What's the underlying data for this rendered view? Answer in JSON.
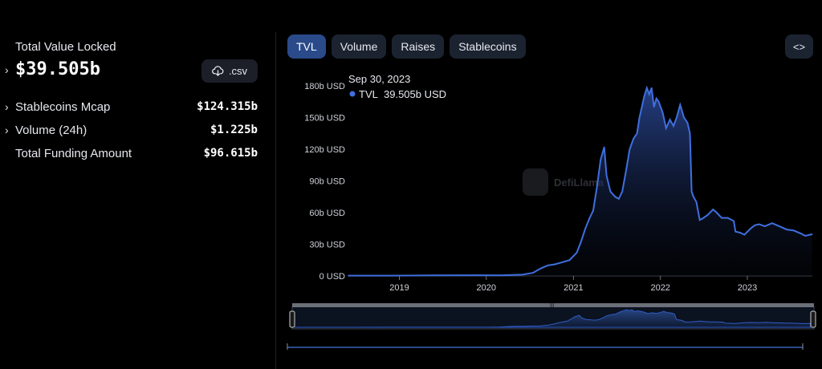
{
  "left": {
    "tvl_label": "Total Value Locked",
    "tvl_value": "$39.505b",
    "csv_label": ".csv",
    "stats": [
      {
        "label": "Stablecoins Mcap",
        "value": "$124.315b",
        "expandable": true
      },
      {
        "label": "Volume (24h)",
        "value": "$1.225b",
        "expandable": true
      },
      {
        "label": "Total Funding Amount",
        "value": "$96.615b",
        "expandable": false
      }
    ]
  },
  "tabs": [
    {
      "label": "TVL",
      "active": true
    },
    {
      "label": "Volume",
      "active": false
    },
    {
      "label": "Raises",
      "active": false
    },
    {
      "label": "Stablecoins",
      "active": false
    }
  ],
  "embed_icon": "code-brackets-icon",
  "watermark": "DefiLlama",
  "colors": {
    "line": "#3f6fe0",
    "area_top": "#2b4a9a",
    "active_tab": "#2a4a8a",
    "background": "#000000"
  },
  "tooltip": {
    "date": "Sep 30, 2023",
    "series": "TVL",
    "value": "39.505b USD"
  },
  "chart_data": {
    "type": "area",
    "title": "",
    "xlabel": "",
    "ylabel": "",
    "x_ticks": [
      "2019",
      "2020",
      "2021",
      "2022",
      "2023"
    ],
    "y_ticks": [
      "0 USD",
      "30b USD",
      "60b USD",
      "90b USD",
      "120b USD",
      "150b USD",
      "180b USD"
    ],
    "ylim": [
      0,
      180
    ],
    "xlim": [
      "2018-06-01",
      "2023-10-01"
    ],
    "grid": false,
    "series": [
      {
        "name": "TVL",
        "unit": "b USD",
        "points": [
          [
            "2018-06-01",
            0.3
          ],
          [
            "2018-12-01",
            0.3
          ],
          [
            "2019-06-01",
            0.6
          ],
          [
            "2019-12-01",
            0.7
          ],
          [
            "2020-03-01",
            0.5
          ],
          [
            "2020-06-01",
            1.2
          ],
          [
            "2020-07-15",
            3
          ],
          [
            "2020-08-15",
            7
          ],
          [
            "2020-09-15",
            10
          ],
          [
            "2020-10-15",
            11
          ],
          [
            "2020-11-15",
            13
          ],
          [
            "2020-12-15",
            15
          ],
          [
            "2021-01-15",
            22
          ],
          [
            "2021-02-01",
            32
          ],
          [
            "2021-02-20",
            45
          ],
          [
            "2021-03-10",
            55
          ],
          [
            "2021-03-25",
            62
          ],
          [
            "2021-04-10",
            85
          ],
          [
            "2021-04-25",
            110
          ],
          [
            "2021-05-10",
            122
          ],
          [
            "2021-05-20",
            95
          ],
          [
            "2021-06-05",
            80
          ],
          [
            "2021-06-25",
            75
          ],
          [
            "2021-07-10",
            73
          ],
          [
            "2021-07-25",
            80
          ],
          [
            "2021-08-10",
            100
          ],
          [
            "2021-08-25",
            120
          ],
          [
            "2021-09-10",
            130
          ],
          [
            "2021-09-25",
            135
          ],
          [
            "2021-10-05",
            150
          ],
          [
            "2021-10-15",
            160
          ],
          [
            "2021-10-25",
            170
          ],
          [
            "2021-11-05",
            178
          ],
          [
            "2021-11-15",
            172
          ],
          [
            "2021-11-25",
            178
          ],
          [
            "2021-12-05",
            160
          ],
          [
            "2021-12-15",
            168
          ],
          [
            "2021-12-25",
            165
          ],
          [
            "2022-01-10",
            155
          ],
          [
            "2022-01-25",
            140
          ],
          [
            "2022-02-10",
            148
          ],
          [
            "2022-02-25",
            142
          ],
          [
            "2022-03-10",
            150
          ],
          [
            "2022-03-25",
            162
          ],
          [
            "2022-04-10",
            150
          ],
          [
            "2022-04-25",
            145
          ],
          [
            "2022-05-05",
            135
          ],
          [
            "2022-05-12",
            80
          ],
          [
            "2022-05-20",
            75
          ],
          [
            "2022-06-01",
            70
          ],
          [
            "2022-06-15",
            53
          ],
          [
            "2022-07-01",
            55
          ],
          [
            "2022-07-20",
            58
          ],
          [
            "2022-08-10",
            63
          ],
          [
            "2022-08-25",
            60
          ],
          [
            "2022-09-15",
            55
          ],
          [
            "2022-10-10",
            55
          ],
          [
            "2022-11-05",
            52
          ],
          [
            "2022-11-12",
            42
          ],
          [
            "2022-12-01",
            41
          ],
          [
            "2022-12-20",
            39
          ],
          [
            "2023-01-15",
            45
          ],
          [
            "2023-02-01",
            48
          ],
          [
            "2023-02-20",
            49
          ],
          [
            "2023-03-15",
            47
          ],
          [
            "2023-04-15",
            50
          ],
          [
            "2023-05-15",
            47
          ],
          [
            "2023-06-15",
            44
          ],
          [
            "2023-07-15",
            43
          ],
          [
            "2023-08-15",
            40
          ],
          [
            "2023-09-01",
            38
          ],
          [
            "2023-09-30",
            39.505
          ]
        ]
      }
    ]
  }
}
